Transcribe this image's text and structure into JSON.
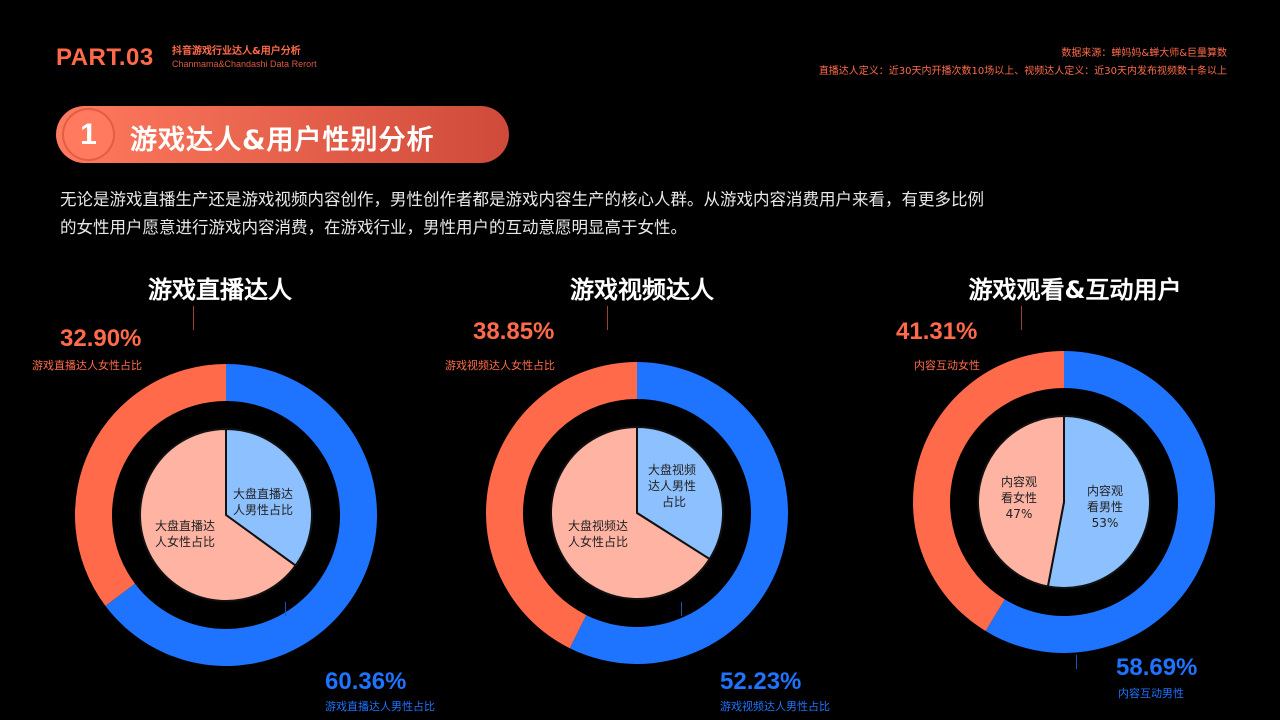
{
  "header": {
    "part": "PART.03",
    "subtitle_cn": "抖音游戏行业达人&用户分析",
    "subtitle_en": "Chanmama&Chandashi Data Rerort",
    "source_line1": "数据来源：蝉妈妈&蝉大师&巨量算数",
    "source_line2": "直播达人定义：近30天内开播次数10场以上、视频达人定义：近30天内发布视频数十条以上"
  },
  "section": {
    "number": "1",
    "title": "游戏达人&用户性别分析"
  },
  "description": {
    "line1": "无论是游戏直播生产还是游戏视频内容创作，男性创作者都是游戏内容生产的核心人群。从游戏内容消费用户来看，有更多比例",
    "line2": "的女性用户愿意进行游戏内容消费，在游戏行业，男性用户的互动意愿明显高于女性。"
  },
  "colors": {
    "accent": "#ff6b4a",
    "female_outer": "#ff6b4a",
    "male_outer": "#1e73ff",
    "female_inner": "#ffb3a3",
    "male_inner": "#8cc0ff"
  },
  "chart_data": [
    {
      "type": "pie",
      "title": "游戏直播达人",
      "outer": {
        "female": 32.9,
        "male": 60.36,
        "female_text": "32.90%",
        "female_label": "游戏直播达人女性占比",
        "male_text": "60.36%",
        "male_label": "游戏直播达人男性占比"
      },
      "inner": {
        "male": 35,
        "female": 65,
        "male_label_1": "大盘直播达",
        "male_label_2": "人男性占比",
        "female_label_1": "大盘直播达",
        "female_label_2": "人女性占比"
      }
    },
    {
      "type": "pie",
      "title": "游戏视频达人",
      "outer": {
        "female": 38.85,
        "male": 52.23,
        "female_text": "38.85%",
        "female_label": "游戏视频达人女性占比",
        "male_text": "52.23%",
        "male_label": "游戏视频达人男性占比"
      },
      "inner": {
        "male": 34,
        "female": 66,
        "male_label_1": "大盘视频",
        "male_label_2": "达人男性",
        "male_label_3": "占比",
        "female_label_1": "大盘视频达",
        "female_label_2": "人女性占比"
      }
    },
    {
      "type": "pie",
      "title": "游戏观看&互动用户",
      "outer": {
        "female": 41.31,
        "male": 58.69,
        "female_text": "41.31%",
        "female_label": "内容互动女性",
        "male_text": "58.69%",
        "male_label": "内容互动男性"
      },
      "inner": {
        "male": 53,
        "female": 47,
        "male_label_1": "内容观",
        "male_label_2": "看男性",
        "male_label_3": "53%",
        "female_label_1": "内容观",
        "female_label_2": "看女性",
        "female_label_3": "47%"
      }
    }
  ]
}
